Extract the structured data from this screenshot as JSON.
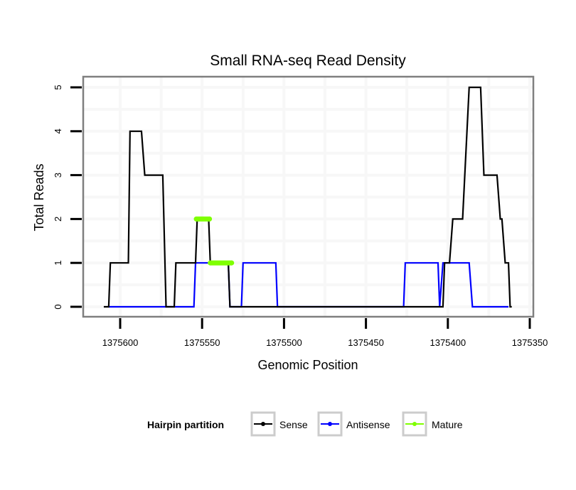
{
  "chart_data": {
    "type": "line",
    "title": "Small RNA-seq Read Density",
    "xlabel": "Genomic Position",
    "ylabel": "Total Reads",
    "xlim": [
      1375610.5,
      1375348.5
    ],
    "x_reversed": true,
    "ylim": [
      -0.2,
      5.1
    ],
    "x_ticks": [
      1375600,
      1375550,
      1375500,
      1375450,
      1375400,
      1375350
    ],
    "x_tick_labels": [
      "1375600",
      "1375550",
      "1375500",
      "1375450",
      "1375400",
      "1375350"
    ],
    "y_ticks": [
      0,
      1,
      2,
      3,
      4,
      5
    ],
    "y_tick_labels": [
      "0",
      "1",
      "2",
      "3",
      "4",
      "5"
    ],
    "grid": true,
    "legend": {
      "title": "Hairpin partition",
      "placement": "bottom",
      "entries": [
        {
          "label": "Sense",
          "color": "#000000"
        },
        {
          "label": "Antisense",
          "color": "#0000ff"
        },
        {
          "label": "Mature",
          "color": "#7fff00"
        }
      ]
    },
    "series": [
      {
        "name": "Sense",
        "color": "#000000",
        "x": [
          1375610,
          1375607,
          1375606,
          1375595,
          1375594,
          1375587,
          1375585,
          1375574,
          1375572,
          1375567,
          1375566,
          1375554,
          1375553,
          1375546,
          1375545,
          1375534,
          1375533,
          1375403,
          1375402,
          1375399,
          1375397,
          1375391,
          1375387,
          1375380,
          1375378,
          1375370,
          1375368,
          1375367,
          1375365,
          1375363,
          1375362,
          1375361
        ],
        "y": [
          0,
          0,
          1,
          1,
          4,
          4,
          3,
          3,
          0,
          0,
          1,
          1,
          2,
          2,
          1,
          1,
          0,
          0,
          1,
          1,
          2,
          2,
          5,
          5,
          3,
          3,
          2,
          2,
          1,
          1,
          0,
          0
        ]
      },
      {
        "name": "Antisense",
        "color": "#0000ff",
        "x": [
          1375607,
          1375555,
          1375554,
          1375534,
          1375533,
          1375526,
          1375525,
          1375505,
          1375504,
          1375427,
          1375426,
          1375406,
          1375405,
          1375403,
          1375387,
          1375385,
          1375363
        ],
        "y": [
          0,
          0,
          1,
          1,
          0,
          0,
          1,
          1,
          0,
          0,
          1,
          1,
          0,
          1,
          1,
          0,
          0
        ]
      },
      {
        "name": "Mature",
        "color": "#7fff00",
        "x": [
          1375553.5,
          1375545.5,
          1375545,
          1375532
        ],
        "y": [
          2,
          2,
          1,
          1
        ],
        "segments": [
          [
            0,
            1
          ],
          [
            2,
            3
          ]
        ]
      }
    ]
  }
}
